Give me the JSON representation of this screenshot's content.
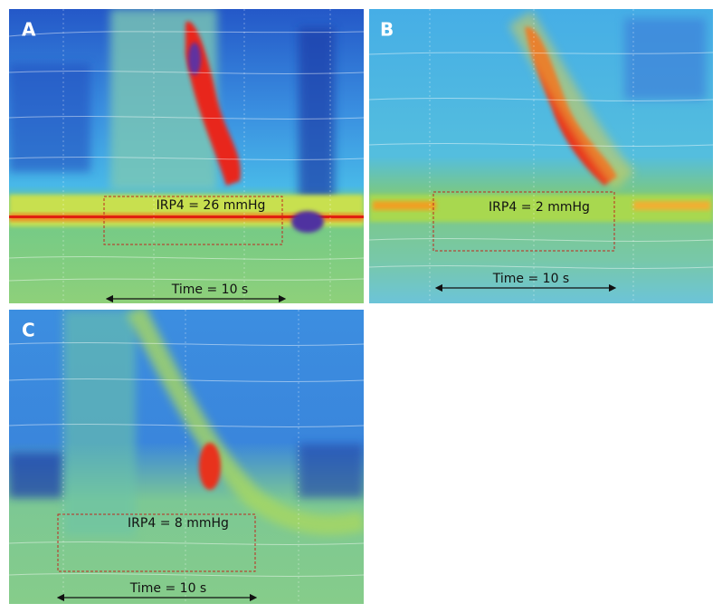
{
  "panels": [
    {
      "label": "A",
      "irp": "IRP4 = 26 mmHg",
      "time": "Time = 10 s"
    },
    {
      "label": "B",
      "irp": "IRP4 = 2 mmHg",
      "time": "Time = 10 s"
    },
    {
      "label": "C",
      "irp": "IRP4 = 8 mmHg",
      "time": "Time = 10 s"
    }
  ]
}
